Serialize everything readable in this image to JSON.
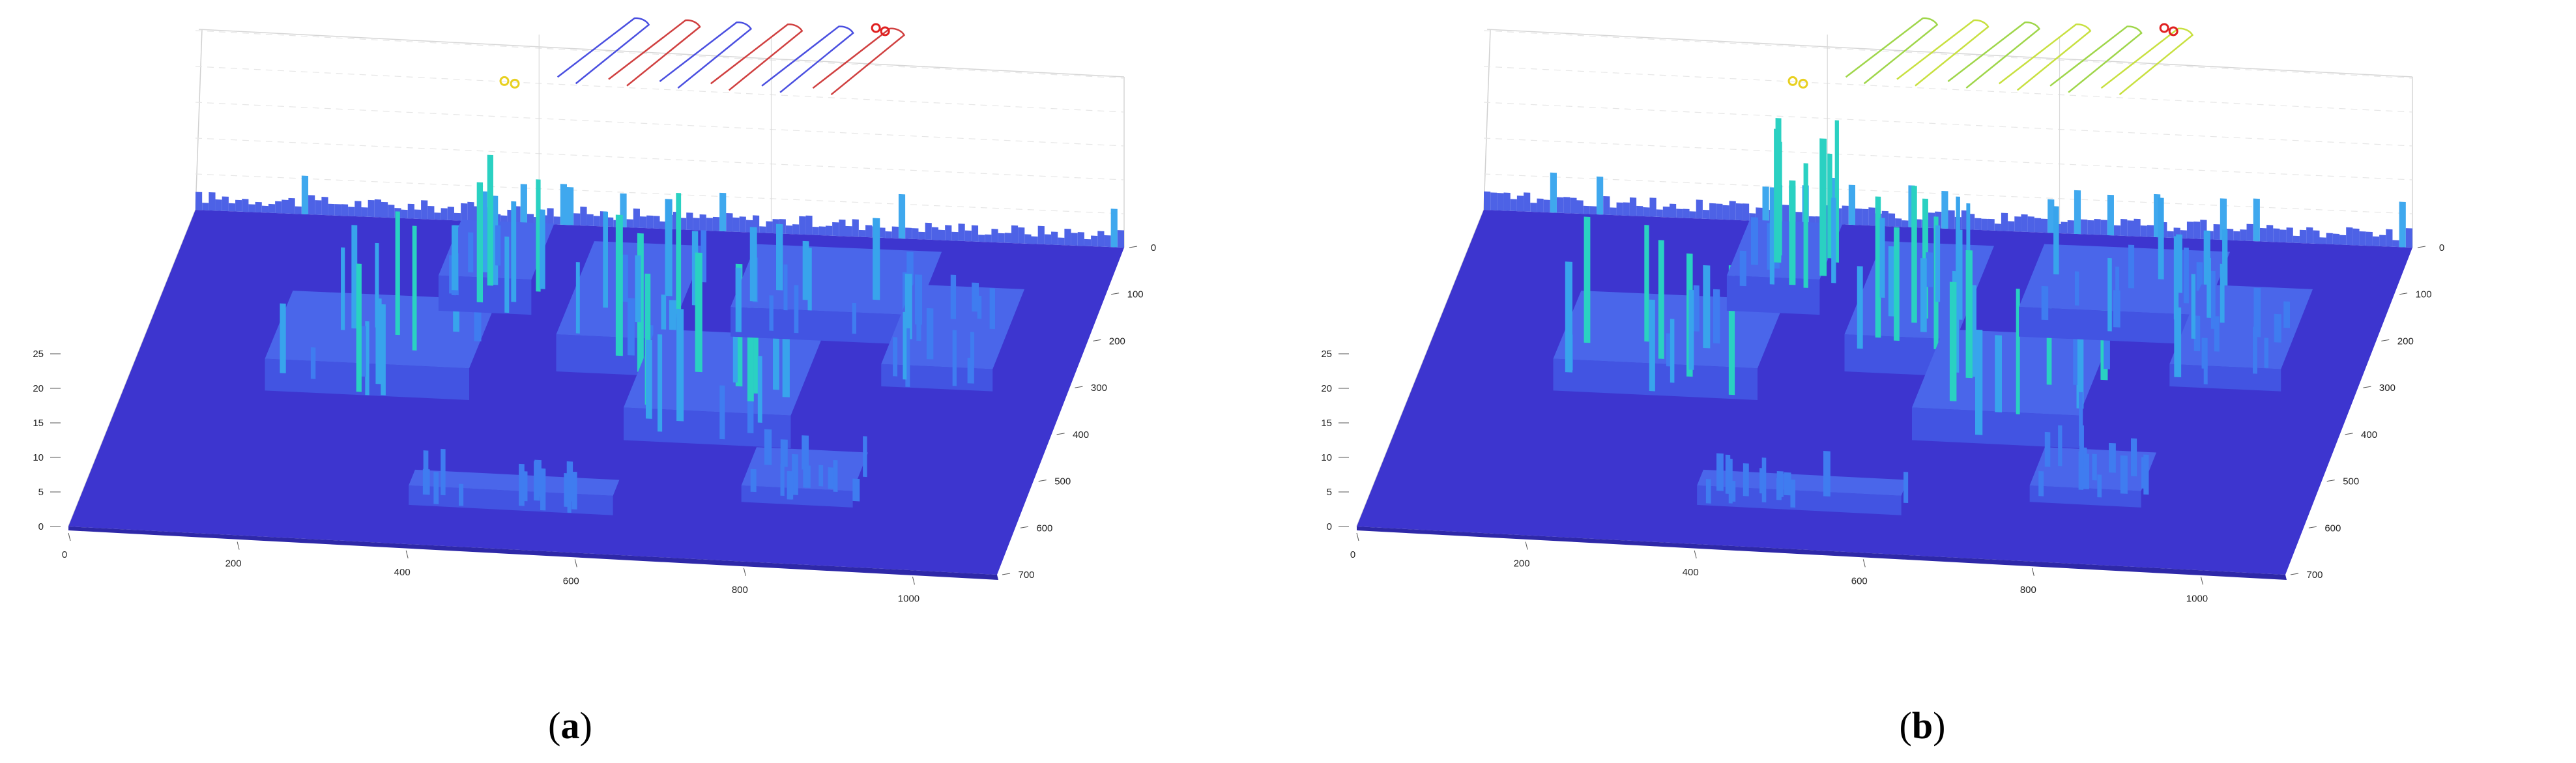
{
  "panels": [
    {
      "caption_prefix": "(",
      "caption_letter": "a",
      "caption_suffix": ")",
      "path_color": "#4a4fe0",
      "path_alt_color": "#d04040"
    },
    {
      "caption_prefix": "(",
      "caption_letter": "b",
      "caption_suffix": ")",
      "path_color": "#9fd64a",
      "path_alt_color": "#c8e040"
    }
  ],
  "colors": {
    "ground": "#3d35cf",
    "ground_light": "#4a4ae0",
    "building": "#3f7cf0",
    "tall": "#2ad1c2",
    "peak": "#b8e850",
    "marker_yellow": "#e8d020",
    "marker_red": "#e02020"
  },
  "chart_data": [
    {
      "type": "surface",
      "title": "",
      "xlabel": "",
      "ylabel": "",
      "zlabel": "",
      "xlim": [
        0,
        1100
      ],
      "ylim": [
        0,
        700
      ],
      "zlim": [
        0,
        25
      ],
      "x_ticks": [
        "0",
        "200",
        "400",
        "600",
        "800",
        "1000"
      ],
      "y_ticks": [
        "0",
        "100",
        "200",
        "300",
        "400",
        "500",
        "600",
        "700"
      ],
      "z_ticks": [
        "0",
        "5",
        "10",
        "15",
        "20",
        "25"
      ],
      "grid": true,
      "series": [
        {
          "type": "terrain",
          "description_values": "height map"
        },
        {
          "type": "path",
          "passes": 6
        }
      ]
    },
    {
      "type": "surface",
      "title": "",
      "xlabel": "",
      "ylabel": "",
      "zlabel": "",
      "xlim": [
        0,
        1100
      ],
      "ylim": [
        0,
        700
      ],
      "zlim": [
        0,
        25
      ],
      "x_ticks": [
        "0",
        "200",
        "400",
        "600",
        "800",
        "1000"
      ],
      "y_ticks": [
        "0",
        "100",
        "200",
        "300",
        "400",
        "500",
        "600",
        "700"
      ],
      "z_ticks": [
        "0",
        "5",
        "10",
        "15",
        "20",
        "25"
      ],
      "grid": true,
      "series": [
        {
          "type": "terrain",
          "description_values": "height map"
        },
        {
          "type": "path",
          "passes": 6
        }
      ]
    }
  ]
}
